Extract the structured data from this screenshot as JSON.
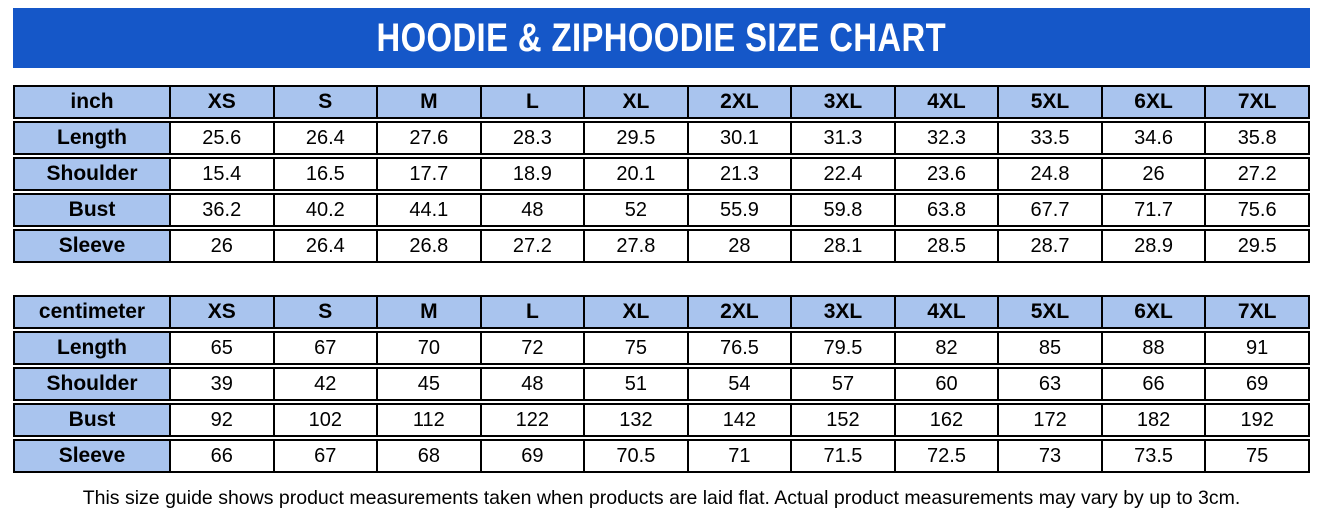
{
  "title": "HOODIE & ZIPHOODIE SIZE CHART",
  "footer": "This size guide shows product measurements taken when products are laid flat. Actual product measurements may vary by up to 3cm.",
  "sizes": [
    "XS",
    "S",
    "M",
    "L",
    "XL",
    "2XL",
    "3XL",
    "4XL",
    "5XL",
    "6XL",
    "7XL"
  ],
  "tables": [
    {
      "unit_label": "inch",
      "rows": [
        {
          "label": "Length",
          "values": [
            "25.6",
            "26.4",
            "27.6",
            "28.3",
            "29.5",
            "30.1",
            "31.3",
            "32.3",
            "33.5",
            "34.6",
            "35.8"
          ]
        },
        {
          "label": "Shoulder",
          "values": [
            "15.4",
            "16.5",
            "17.7",
            "18.9",
            "20.1",
            "21.3",
            "22.4",
            "23.6",
            "24.8",
            "26",
            "27.2"
          ]
        },
        {
          "label": "Bust",
          "values": [
            "36.2",
            "40.2",
            "44.1",
            "48",
            "52",
            "55.9",
            "59.8",
            "63.8",
            "67.7",
            "71.7",
            "75.6"
          ]
        },
        {
          "label": "Sleeve",
          "values": [
            "26",
            "26.4",
            "26.8",
            "27.2",
            "27.8",
            "28",
            "28.1",
            "28.5",
            "28.7",
            "28.9",
            "29.5"
          ]
        }
      ]
    },
    {
      "unit_label": "centimeter",
      "rows": [
        {
          "label": "Length",
          "values": [
            "65",
            "67",
            "70",
            "72",
            "75",
            "76.5",
            "79.5",
            "82",
            "85",
            "88",
            "91"
          ]
        },
        {
          "label": "Shoulder",
          "values": [
            "39",
            "42",
            "45",
            "48",
            "51",
            "54",
            "57",
            "60",
            "63",
            "66",
            "69"
          ]
        },
        {
          "label": "Bust",
          "values": [
            "92",
            "102",
            "112",
            "122",
            "132",
            "142",
            "152",
            "162",
            "172",
            "182",
            "192"
          ]
        },
        {
          "label": "Sleeve",
          "values": [
            "66",
            "67",
            "68",
            "69",
            "70.5",
            "71",
            "71.5",
            "72.5",
            "73",
            "73.5",
            "75"
          ]
        }
      ]
    }
  ],
  "colors": {
    "banner_bg": "#1557c8",
    "banner_text": "#ffffff",
    "header_cell_bg": "#a9c4ee",
    "data_cell_bg": "#ffffff",
    "border": "#000000"
  }
}
